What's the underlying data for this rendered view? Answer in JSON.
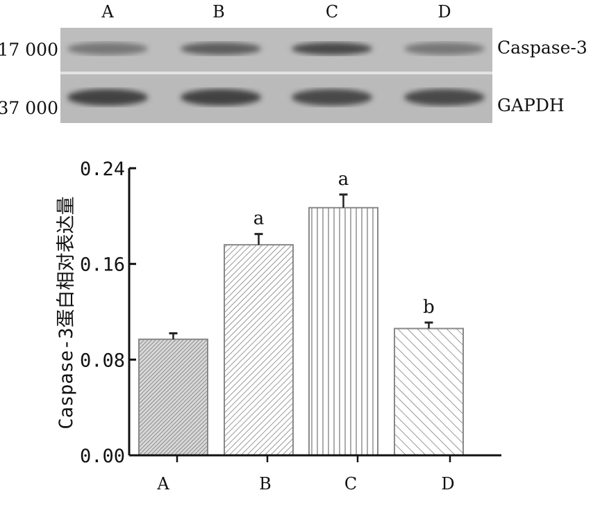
{
  "blot": {
    "lanes": [
      "A",
      "B",
      "C",
      "D"
    ],
    "rows": [
      {
        "marker": "17 000",
        "label": "Caspase-3",
        "band_intensity": [
          0.55,
          0.75,
          0.9,
          0.55
        ]
      },
      {
        "marker": "37 000",
        "label": "GAPDH",
        "band_intensity": [
          0.95,
          0.95,
          0.9,
          0.9
        ]
      }
    ]
  },
  "chart_data": {
    "type": "bar",
    "categories": [
      "A",
      "B",
      "C",
      "D"
    ],
    "values": [
      0.097,
      0.176,
      0.207,
      0.106
    ],
    "errors": [
      0.005,
      0.009,
      0.011,
      0.005
    ],
    "annotations": [
      "",
      "a",
      "a",
      "b"
    ],
    "patterns": [
      "dense-diagonal",
      "diagonal",
      "vertical",
      "back-diagonal"
    ],
    "xlabel": "",
    "ylabel": "Caspase-3蛋白相对表达量",
    "ylim": [
      0,
      0.24
    ],
    "yticks": [
      "0.00",
      "0.08",
      "0.16",
      "0.24"
    ],
    "grid": false
  }
}
